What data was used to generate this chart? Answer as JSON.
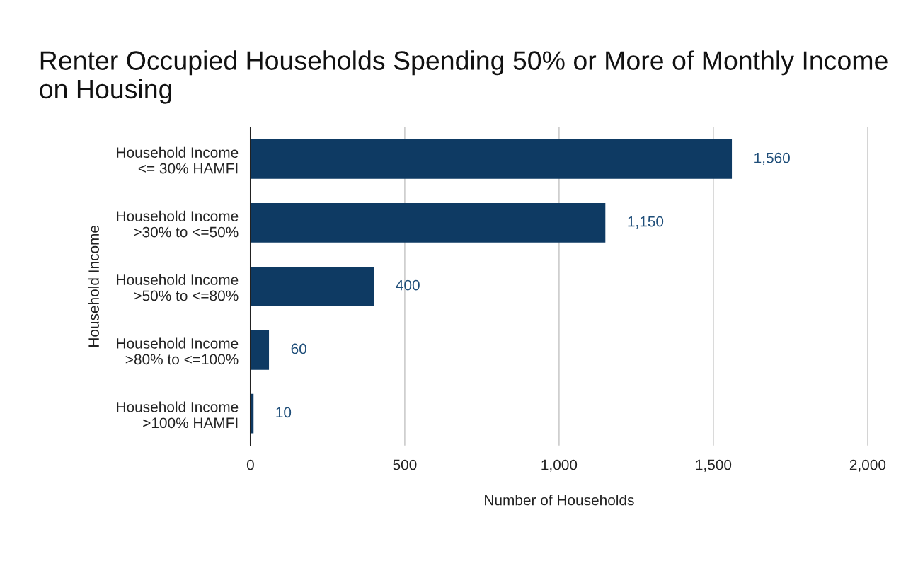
{
  "chart_data": {
    "type": "bar",
    "orientation": "horizontal",
    "title": "Renter Occupied Households Spending 50% or More of Monthly Income on Housing",
    "xlabel": "Number of Households",
    "ylabel": "Household Income",
    "categories": [
      "Household Income\n<= 30% HAMFI",
      "Household Income\n>30% to <=50%",
      "Household Income\n>50% to <=80%",
      "Household Income\n>80% to <=100%",
      "Household Income\n>100% HAMFI"
    ],
    "values": [
      1560,
      1150,
      400,
      60,
      10
    ],
    "value_labels": [
      "1,560",
      "1,150",
      "400",
      "60",
      "10"
    ],
    "color": "#0e3a63",
    "xlim": [
      0,
      2000
    ],
    "xticks": [
      0,
      {
        "value": 500,
        "label": "500"
      },
      {
        "value": 1000,
        "label": "1,000"
      },
      {
        "value": 1500,
        "label": "1,500"
      },
      {
        "value": 2000,
        "label": "2,000"
      }
    ],
    "grid": "x"
  }
}
